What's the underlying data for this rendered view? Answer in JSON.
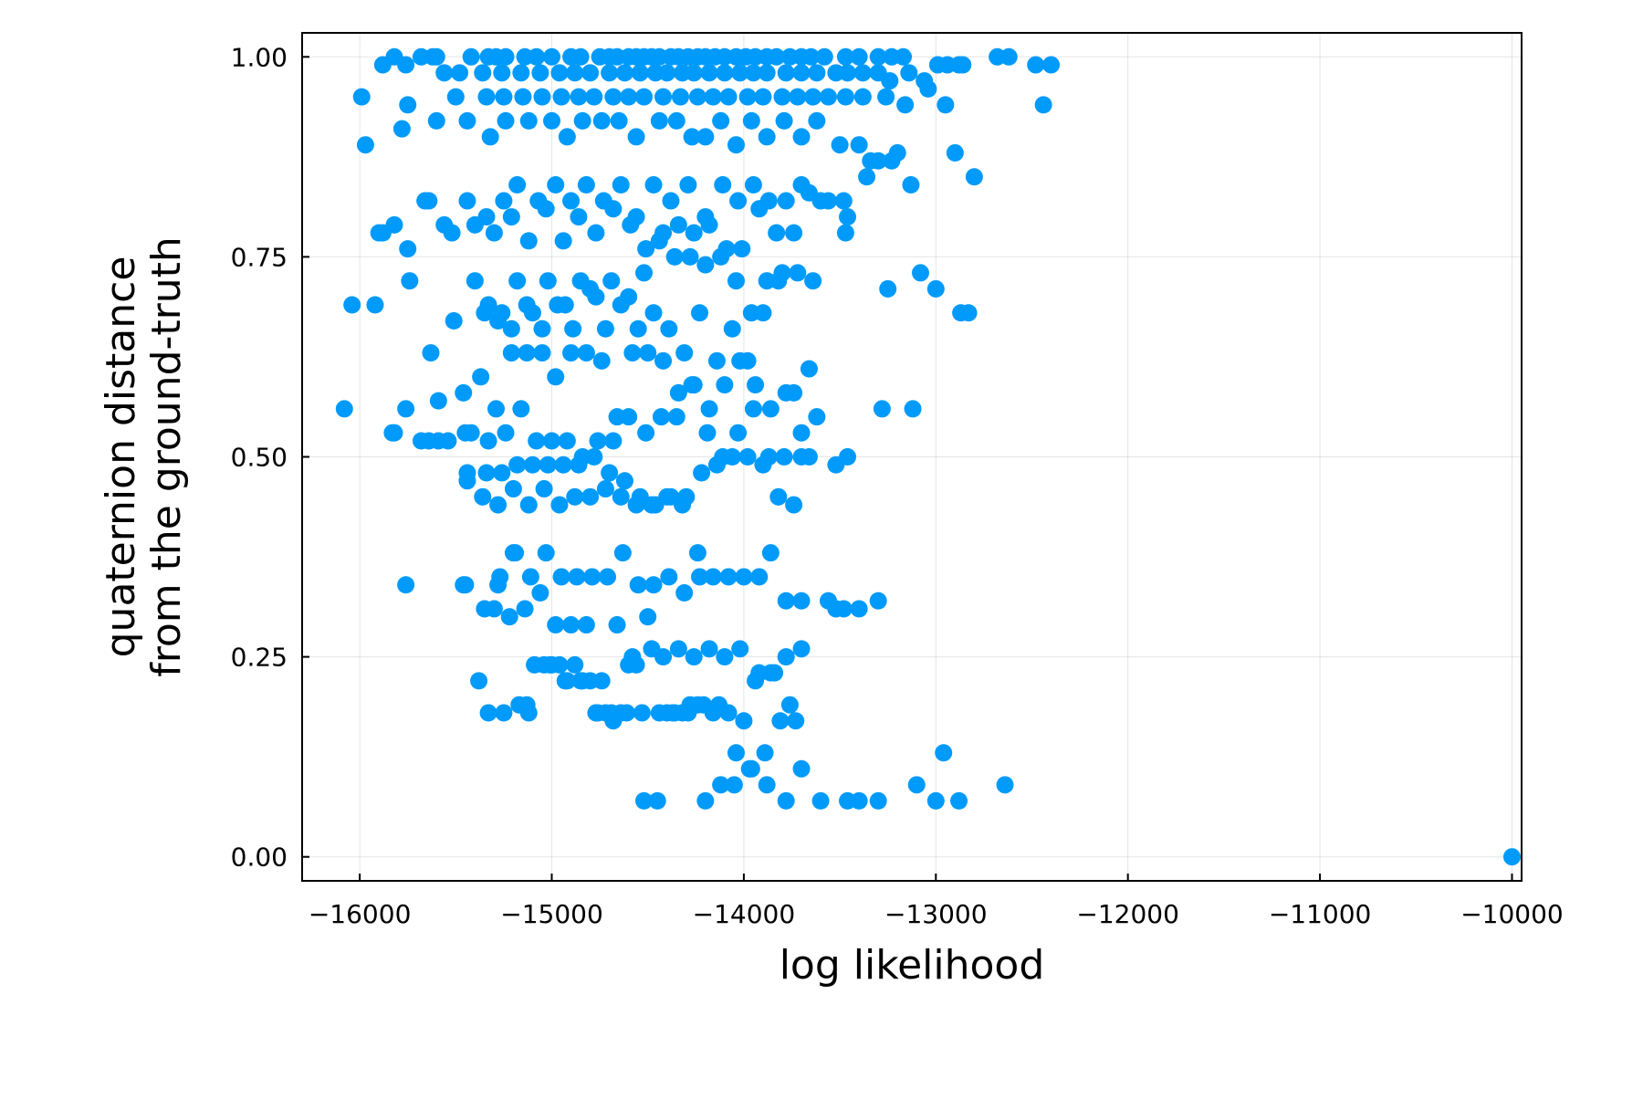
{
  "chart_data": {
    "type": "scatter",
    "xlabel": "log likelihood",
    "ylabel_lines": [
      "quaternion distance",
      "from the ground-truth"
    ],
    "xlim": [
      -16300,
      -9950
    ],
    "ylim": [
      -0.03,
      1.03
    ],
    "x_ticks": [
      -16000,
      -15000,
      -14000,
      -13000,
      -12000,
      -11000,
      -10000
    ],
    "x_tick_labels": [
      "−16000",
      "−15000",
      "−14000",
      "−13000",
      "−12000",
      "−11000",
      "−10000"
    ],
    "y_ticks": [
      0,
      0.25,
      0.5,
      0.75,
      1.0
    ],
    "y_tick_labels": [
      "0.00",
      "0.25",
      "0.50",
      "0.75",
      "1.00"
    ],
    "grid": true,
    "legend": false,
    "series": [
      {
        "color": "#009AFA",
        "x": [
          -15820,
          -15680,
          -15620,
          -15600,
          -15420,
          -15330,
          -15290,
          -15240,
          -15140,
          -15080,
          -15000,
          -14900,
          -14850,
          -14750,
          -14700,
          -14660,
          -14600,
          -14560,
          -14520,
          -14480,
          -14440,
          -14380,
          -14340,
          -14290,
          -14240,
          -14200,
          -14150,
          -14100,
          -14040,
          -13990,
          -13940,
          -13880,
          -13830,
          -13760,
          -13700,
          -13650,
          -13580,
          -13470,
          -13400,
          -13300,
          -13230,
          -13170,
          -12990,
          -12880,
          -12680,
          -12620,
          -12480,
          -15880,
          -15760,
          -15560,
          -15480,
          -15360,
          -15260,
          -15160,
          -15060,
          -14960,
          -14880,
          -14800,
          -14700,
          -14620,
          -14540,
          -14460,
          -14400,
          -14320,
          -14260,
          -14180,
          -14100,
          -14020,
          -13950,
          -13880,
          -13780,
          -13700,
          -13620,
          -13520,
          -13460,
          -13380,
          -13300,
          -13240,
          -13140,
          -13060,
          -12940,
          -12860,
          -12400,
          -15990,
          -15750,
          -15500,
          -15340,
          -15250,
          -15150,
          -15050,
          -14950,
          -14860,
          -14780,
          -14680,
          -14600,
          -14520,
          -14420,
          -14330,
          -14240,
          -14160,
          -14080,
          -13980,
          -13900,
          -13800,
          -13720,
          -13640,
          -13560,
          -13470,
          -13380,
          -13260,
          -13160,
          -13040,
          -12950,
          -12440,
          -15970,
          -15780,
          -15600,
          -15440,
          -15320,
          -15240,
          -15120,
          -15000,
          -14920,
          -14840,
          -14740,
          -14650,
          -14560,
          -14440,
          -14350,
          -14270,
          -14200,
          -14120,
          -14040,
          -13960,
          -13880,
          -13790,
          -13700,
          -13620,
          -13500,
          -13400,
          -13300,
          -13200,
          -12900,
          -15820,
          -15660,
          -15560,
          -15440,
          -15340,
          -15250,
          -15180,
          -15070,
          -14980,
          -14900,
          -14820,
          -14730,
          -14640,
          -14560,
          -14470,
          -14380,
          -14290,
          -14200,
          -14110,
          -14030,
          -13950,
          -13870,
          -13780,
          -13700,
          -13600,
          -13480,
          -13340,
          -13230,
          -13130,
          -12870,
          -12800,
          -15880,
          -15750,
          -15640,
          -15520,
          -15400,
          -15300,
          -15210,
          -15120,
          -15030,
          -14940,
          -14860,
          -14770,
          -14680,
          -14590,
          -14510,
          -14420,
          -14340,
          -14260,
          -14180,
          -14090,
          -14010,
          -13920,
          -13830,
          -13740,
          -13660,
          -13560,
          -13460,
          -13360,
          -15920,
          -15740,
          -15510,
          -15400,
          -15330,
          -15260,
          -15180,
          -15100,
          -15020,
          -14930,
          -14850,
          -14770,
          -14690,
          -14600,
          -14520,
          -14440,
          -14360,
          -14280,
          -14200,
          -14120,
          -14040,
          -13960,
          -13880,
          -13800,
          -13720,
          -13640,
          -13470,
          -15830,
          -15630,
          -15450,
          -15350,
          -15280,
          -15210,
          -15130,
          -15050,
          -14970,
          -14890,
          -14800,
          -14720,
          -14640,
          -14550,
          -14470,
          -14390,
          -14310,
          -14230,
          -14140,
          -14060,
          -13980,
          -13900,
          -13820,
          -13740,
          -13660,
          -13250,
          -13080,
          -13000,
          -12830,
          -16040,
          -15900,
          -15590,
          -15460,
          -15370,
          -15290,
          -15210,
          -15130,
          -15050,
          -14980,
          -14900,
          -14820,
          -14740,
          -14660,
          -14580,
          -14500,
          -14420,
          -14340,
          -14260,
          -14180,
          -14100,
          -14020,
          -13940,
          -13860,
          -13780,
          -13700,
          -15640,
          -15420,
          -15330,
          -15240,
          -15160,
          -15080,
          -15000,
          -14920,
          -14840,
          -14760,
          -14680,
          -14600,
          -14510,
          -14430,
          -14350,
          -14270,
          -14190,
          -14110,
          -14030,
          -13950,
          -13870,
          -13790,
          -13700,
          -13620,
          -13520,
          -13460,
          -16080,
          -15760,
          -15590,
          -15440,
          -15340,
          -15260,
          -15180,
          -15100,
          -15020,
          -14940,
          -14860,
          -14780,
          -14700,
          -14620,
          -14540,
          -14460,
          -14380,
          -14300,
          -14220,
          -14140,
          -14060,
          -13980,
          -13900,
          -13820,
          -13740,
          -13660,
          -13280,
          -13120,
          -15820,
          -15680,
          -15540,
          -15440,
          -15360,
          -15280,
          -15200,
          -15120,
          -15040,
          -14960,
          -14880,
          -14800,
          -14720,
          -14640,
          -14560,
          -14480,
          -14400,
          -14320,
          -14240,
          -14160,
          -14080,
          -14000,
          -13920,
          -15450,
          -15350,
          -15270,
          -15190,
          -15110,
          -15030,
          -14950,
          -14870,
          -14790,
          -14710,
          -14630,
          -14550,
          -14470,
          -14390,
          -14310,
          -14230,
          -13860,
          -13780,
          -13700,
          -13520,
          -13400,
          -13300,
          -15380,
          -15300,
          -15220,
          -15140,
          -15060,
          -14980,
          -14900,
          -14820,
          -14740,
          -14660,
          -14580,
          -14500,
          -14420,
          -14340,
          -14260,
          -14180,
          -14100,
          -14020,
          -13940,
          -13860,
          -13780,
          -13700,
          -15760,
          -15460,
          -15280,
          -15200,
          -15120,
          -15040,
          -14960,
          -14880,
          -14800,
          -14720,
          -14640,
          -14560,
          -14480,
          -14400,
          -14320,
          -14240,
          -14160,
          -14080,
          -14000,
          -13920,
          -13840,
          -13760,
          -13560,
          -13480,
          -15330,
          -15250,
          -15170,
          -15090,
          -15010,
          -14930,
          -14850,
          -14770,
          -14690,
          -14610,
          -14530,
          -14450,
          -14370,
          -14290,
          -14210,
          -14130,
          -14050,
          -13970,
          -13890,
          -13810,
          -13730,
          -15130,
          -15000,
          -14920,
          -14840,
          -14760,
          -14680,
          -14600,
          -14520,
          -14440,
          -14360,
          -14280,
          -14200,
          -14120,
          -14040,
          -13960,
          -13880,
          -13780,
          -13700,
          -13600,
          -13460,
          -13400,
          -13300,
          -13100,
          -13000,
          -12960,
          -12880,
          -12640,
          -10000
        ],
        "y": [
          1.0,
          1.0,
          1.0,
          1.0,
          1.0,
          1.0,
          1.0,
          1.0,
          1.0,
          1.0,
          1.0,
          1.0,
          1.0,
          1.0,
          1.0,
          1.0,
          1.0,
          1.0,
          1.0,
          1.0,
          1.0,
          1.0,
          1.0,
          1.0,
          1.0,
          1.0,
          1.0,
          1.0,
          1.0,
          1.0,
          1.0,
          1.0,
          1.0,
          1.0,
          1.0,
          1.0,
          1.0,
          1.0,
          1.0,
          1.0,
          1.0,
          1.0,
          0.99,
          0.99,
          1.0,
          1.0,
          0.99,
          0.99,
          0.99,
          0.98,
          0.98,
          0.98,
          0.98,
          0.98,
          0.98,
          0.98,
          0.98,
          0.98,
          0.98,
          0.98,
          0.98,
          0.98,
          0.98,
          0.98,
          0.98,
          0.98,
          0.98,
          0.98,
          0.98,
          0.98,
          0.98,
          0.98,
          0.98,
          0.98,
          0.98,
          0.98,
          0.98,
          0.97,
          0.98,
          0.97,
          0.99,
          0.99,
          0.99,
          0.95,
          0.94,
          0.95,
          0.95,
          0.95,
          0.95,
          0.95,
          0.95,
          0.95,
          0.95,
          0.95,
          0.95,
          0.95,
          0.95,
          0.95,
          0.95,
          0.95,
          0.95,
          0.95,
          0.95,
          0.95,
          0.95,
          0.95,
          0.95,
          0.95,
          0.95,
          0.95,
          0.94,
          0.96,
          0.94,
          0.94,
          0.89,
          0.91,
          0.92,
          0.92,
          0.9,
          0.92,
          0.92,
          0.92,
          0.9,
          0.92,
          0.92,
          0.92,
          0.9,
          0.92,
          0.92,
          0.9,
          0.9,
          0.92,
          0.89,
          0.92,
          0.9,
          0.92,
          0.9,
          0.92,
          0.89,
          0.89,
          0.87,
          0.88,
          0.88,
          0.79,
          0.82,
          0.79,
          0.82,
          0.8,
          0.82,
          0.84,
          0.82,
          0.84,
          0.82,
          0.84,
          0.82,
          0.84,
          0.8,
          0.84,
          0.82,
          0.84,
          0.8,
          0.84,
          0.82,
          0.84,
          0.82,
          0.82,
          0.84,
          0.82,
          0.82,
          0.87,
          0.87,
          0.84,
          0.68,
          0.85,
          0.78,
          0.76,
          0.82,
          0.78,
          0.79,
          0.78,
          0.8,
          0.77,
          0.81,
          0.77,
          0.8,
          0.78,
          0.81,
          0.79,
          0.76,
          0.78,
          0.79,
          0.78,
          0.79,
          0.76,
          0.76,
          0.81,
          0.78,
          0.78,
          0.83,
          0.82,
          0.8,
          0.85,
          0.69,
          0.72,
          0.67,
          0.72,
          0.69,
          0.68,
          0.72,
          0.68,
          0.72,
          0.69,
          0.72,
          0.7,
          0.72,
          0.7,
          0.73,
          0.77,
          0.75,
          0.75,
          0.74,
          0.75,
          0.72,
          0.68,
          0.72,
          0.73,
          0.73,
          0.72,
          0.78,
          0.53,
          0.63,
          0.53,
          0.68,
          0.67,
          0.66,
          0.69,
          0.66,
          0.69,
          0.66,
          0.71,
          0.66,
          0.69,
          0.66,
          0.68,
          0.66,
          0.63,
          0.68,
          0.62,
          0.66,
          0.62,
          0.68,
          0.72,
          0.58,
          0.61,
          0.71,
          0.73,
          0.71,
          0.68,
          0.69,
          0.78,
          0.57,
          0.58,
          0.6,
          0.56,
          0.63,
          0.63,
          0.63,
          0.6,
          0.63,
          0.63,
          0.62,
          0.55,
          0.63,
          0.63,
          0.62,
          0.58,
          0.59,
          0.56,
          0.59,
          0.62,
          0.59,
          0.56,
          0.58,
          0.53,
          0.52,
          0.53,
          0.52,
          0.53,
          0.56,
          0.52,
          0.52,
          0.52,
          0.5,
          0.52,
          0.52,
          0.55,
          0.53,
          0.55,
          0.55,
          0.59,
          0.53,
          0.5,
          0.53,
          0.56,
          0.5,
          0.5,
          0.5,
          0.55,
          0.49,
          0.5,
          0.56,
          0.56,
          0.52,
          0.47,
          0.48,
          0.48,
          0.49,
          0.49,
          0.49,
          0.49,
          0.49,
          0.5,
          0.48,
          0.47,
          0.45,
          0.44,
          0.45,
          0.45,
          0.48,
          0.49,
          0.5,
          0.5,
          0.49,
          0.45,
          0.44,
          0.5,
          0.56,
          0.56,
          0.53,
          0.52,
          0.52,
          0.48,
          0.45,
          0.44,
          0.46,
          0.44,
          0.46,
          0.44,
          0.45,
          0.45,
          0.46,
          0.45,
          0.44,
          0.44,
          0.45,
          0.44,
          0.38,
          0.35,
          0.35,
          0.35,
          0.35,
          0.34,
          0.31,
          0.35,
          0.38,
          0.35,
          0.38,
          0.35,
          0.35,
          0.35,
          0.35,
          0.38,
          0.34,
          0.34,
          0.35,
          0.33,
          0.35,
          0.38,
          0.32,
          0.32,
          0.31,
          0.31,
          0.32,
          0.22,
          0.31,
          0.3,
          0.31,
          0.33,
          0.29,
          0.29,
          0.29,
          0.22,
          0.29,
          0.25,
          0.3,
          0.25,
          0.26,
          0.25,
          0.26,
          0.25,
          0.26,
          0.22,
          0.23,
          0.25,
          0.26,
          0.34,
          0.34,
          0.34,
          0.38,
          0.18,
          0.24,
          0.24,
          0.24,
          0.22,
          0.18,
          0.18,
          0.24,
          0.26,
          0.18,
          0.18,
          0.19,
          0.18,
          0.18,
          0.17,
          0.23,
          0.23,
          0.19,
          0.32,
          0.31,
          0.18,
          0.18,
          0.19,
          0.24,
          0.24,
          0.22,
          0.22,
          0.18,
          0.18,
          0.18,
          0.18,
          0.07,
          0.18,
          0.18,
          0.19,
          0.19,
          0.09,
          0.11,
          0.13,
          0.17,
          0.17,
          0.19,
          0.24,
          0.22,
          0.22,
          0.18,
          0.17,
          0.24,
          0.07,
          0.18,
          0.18,
          0.19,
          0.07,
          0.09,
          0.13,
          0.11,
          0.09,
          0.07,
          0.11,
          0.07,
          0.07,
          0.07,
          0.07,
          0.09,
          0.07,
          0.13,
          0.07,
          0.09,
          0.0
        ]
      }
    ]
  }
}
